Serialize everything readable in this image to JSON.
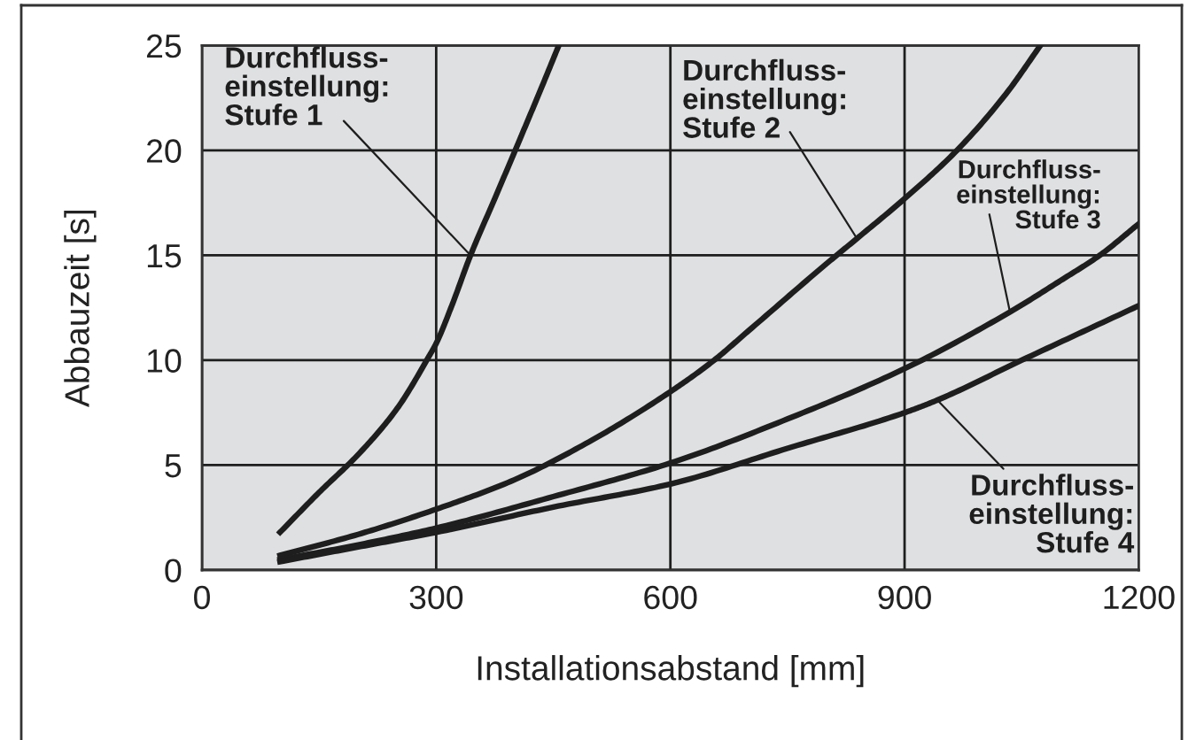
{
  "chart_data": {
    "type": "line",
    "xlabel": "Installationsabstand [mm]",
    "ylabel": "Abbauzeit [s]",
    "xlim": [
      0,
      1200
    ],
    "ylim": [
      0,
      25
    ],
    "xticks": [
      0,
      300,
      600,
      900,
      1200
    ],
    "yticks": [
      0,
      5,
      10,
      15,
      20,
      25
    ],
    "grid": true,
    "line_style": "solid",
    "series": [
      {
        "color": "#1e1e1e",
        "x": [
          100,
          150,
          200,
          250,
          291,
          300,
          320,
          344,
          375,
          408,
          435,
          457
        ],
        "values": [
          1.8,
          3.7,
          5.5,
          7.7,
          10.2,
          10.8,
          12.6,
          15.0,
          17.7,
          20.6,
          23.0,
          25
        ]
      },
      {
        "color": "#1e1e1e",
        "x": [
          100,
          200,
          300,
          400,
          500,
          604,
          656,
          700,
          800,
          839,
          900,
          967,
          1030,
          1074
        ],
        "values": [
          0.7,
          1.7,
          2.9,
          4.3,
          6.2,
          8.6,
          10,
          11.4,
          14.6,
          15.8,
          17.7,
          20,
          22.7,
          25
        ]
      },
      {
        "color": "#1e1e1e",
        "x": [
          100,
          200,
          300,
          450,
          600,
          750,
          900,
          1035,
          1100,
          1150,
          1200
        ],
        "values": [
          0.5,
          1.2,
          2.0,
          3.5,
          5.1,
          7.2,
          9.6,
          12.3,
          13.8,
          15.0,
          16.5
        ]
      },
      {
        "color": "#1e1e1e",
        "x": [
          100,
          200,
          300,
          450,
          600,
          750,
          900,
          942,
          1050,
          1200
        ],
        "values": [
          0.4,
          1.1,
          1.8,
          3.0,
          4.1,
          5.8,
          7.5,
          8.1,
          10.0,
          12.6
        ]
      }
    ],
    "annotations": [
      {
        "text": "Durchfluss-\neinstellung:\nStufe 1",
        "x": 344,
        "y": 15.0
      },
      {
        "text": "Durchfluss-\neinstellung:\nStufe 2",
        "x": 839,
        "y": 15.8
      },
      {
        "text": "Durchfluss-\neinstellung:\nStufe 3",
        "x": 1035,
        "y": 12.3
      },
      {
        "text": "Durchfluss-\neinstellung:\nStufe 4",
        "x": 942,
        "y": 8.1
      }
    ]
  }
}
